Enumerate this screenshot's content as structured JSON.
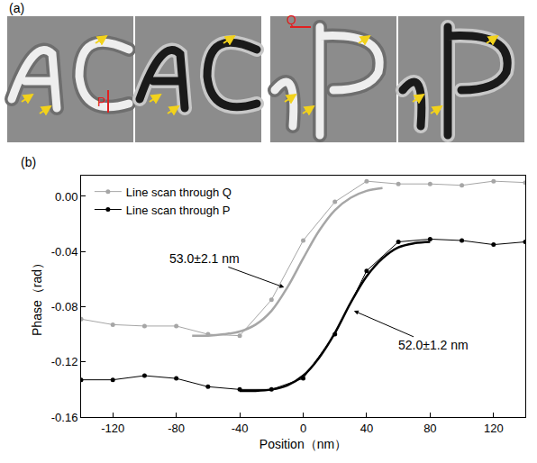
{
  "chart_data": {
    "type": "line",
    "panel_label": "(b)",
    "x_label": "Position（nm）",
    "y_label": "Phase（rad）",
    "xlim": [
      -140,
      140
    ],
    "xticks": [
      -120,
      -80,
      -40,
      0,
      40,
      80,
      120
    ],
    "ylim": [
      -0.16,
      0.015
    ],
    "yticks": [
      -0.16,
      -0.12,
      -0.08,
      -0.04,
      {
        "value": 0,
        "label": "0.00"
      }
    ],
    "grid": false,
    "legend": "upper left",
    "series": [
      {
        "name": "Line scan through Q",
        "color": "#a6a6a6",
        "marker": "circle",
        "x": [
          -140,
          -120,
          -100,
          -80,
          -60,
          -40,
          -20,
          0,
          20,
          40,
          60,
          80,
          100,
          120,
          140
        ],
        "values": [
          -0.089,
          -0.093,
          -0.094,
          -0.094,
          -0.1,
          -0.101,
          -0.075,
          -0.032,
          -0.004,
          0.011,
          0.009,
          0.009,
          0.008,
          0.011,
          0.01
        ],
        "fit": {
          "x": [
            -70,
            -60,
            -50,
            -40,
            -30,
            -20,
            -10,
            0,
            10,
            20,
            30,
            40,
            50
          ],
          "values": [
            -0.101,
            -0.101,
            -0.1,
            -0.098,
            -0.093,
            -0.083,
            -0.066,
            -0.045,
            -0.025,
            -0.01,
            -0.001,
            0.004,
            0.006
          ]
        },
        "annotation": "53.0±2.1 nm"
      },
      {
        "name": "Line scan through P",
        "color": "#000000",
        "marker": "circle",
        "x": [
          -140,
          -120,
          -100,
          -80,
          -60,
          -40,
          -20,
          0,
          20,
          40,
          60,
          80,
          100,
          120,
          140
        ],
        "values": [
          -0.133,
          -0.133,
          -0.13,
          -0.132,
          -0.138,
          -0.14,
          -0.14,
          -0.132,
          -0.1,
          -0.054,
          -0.033,
          -0.031,
          -0.032,
          -0.035,
          -0.033
        ],
        "fit": {
          "x": [
            -40,
            -30,
            -20,
            -10,
            0,
            10,
            20,
            30,
            40,
            50,
            60,
            70,
            80
          ],
          "values": [
            -0.141,
            -0.141,
            -0.14,
            -0.137,
            -0.13,
            -0.117,
            -0.099,
            -0.077,
            -0.058,
            -0.045,
            -0.037,
            -0.034,
            -0.033
          ]
        },
        "annotation": "52.0±1.2 nm"
      }
    ]
  },
  "panel_a": {
    "panel_label": "(a)",
    "markers": [
      "P",
      "Q"
    ]
  }
}
